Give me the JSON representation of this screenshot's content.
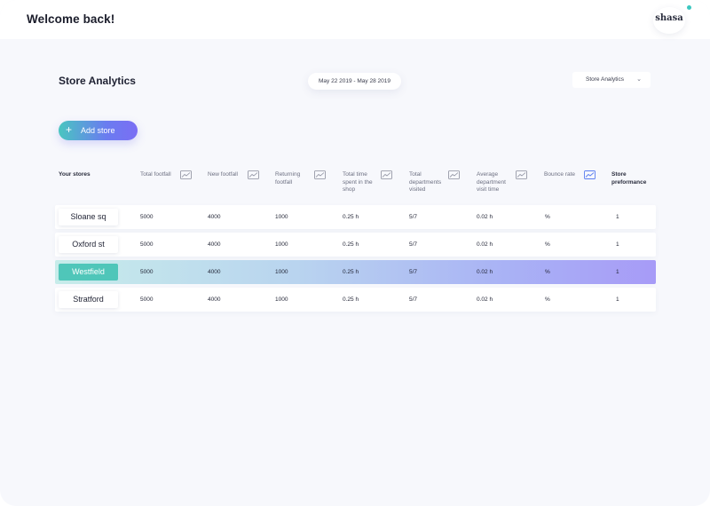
{
  "header": {
    "greeting": "Welcome back!",
    "logo_text": "shasa"
  },
  "page": {
    "title": "Store Analytics",
    "date_range": "May 22 2019 - May 28 2019",
    "view_select": {
      "selected": "Store Analytics",
      "icon": "chevron-down-icon"
    },
    "add_store_label": "Add store",
    "add_store_icon": "plus-icon"
  },
  "table": {
    "columns": [
      {
        "label": "Your stores",
        "bold": true,
        "trend_icon": false
      },
      {
        "label": "Total footfall",
        "trend_icon": true
      },
      {
        "label": "New footfall",
        "trend_icon": true
      },
      {
        "label": "Returning footfall",
        "trend_icon": true
      },
      {
        "label": "Total time spent in the shop",
        "trend_icon": true
      },
      {
        "label": "Total departments visited",
        "trend_icon": true
      },
      {
        "label": "Average department visit time",
        "trend_icon": true
      },
      {
        "label": "Bounce rate",
        "trend_icon": true,
        "trend_active": true
      },
      {
        "label": "Store preformance",
        "bold": true,
        "trend_icon": false
      }
    ],
    "rows": [
      {
        "store": "Sloane sq",
        "total_footfall": "5000",
        "new_footfall": "4000",
        "returning_footfall": "1000",
        "time_spent": "0.25 h",
        "departments": "5/7",
        "avg_visit_time": "0.02 h",
        "bounce_rate": "%",
        "performance": "1",
        "selected": false
      },
      {
        "store": "Oxford st",
        "total_footfall": "5000",
        "new_footfall": "4000",
        "returning_footfall": "1000",
        "time_spent": "0.25 h",
        "departments": "5/7",
        "avg_visit_time": "0.02 h",
        "bounce_rate": "%",
        "performance": "1",
        "selected": false
      },
      {
        "store": "Westfield",
        "total_footfall": "5000",
        "new_footfall": "4000",
        "returning_footfall": "1000",
        "time_spent": "0.25 h",
        "departments": "5/7",
        "avg_visit_time": "0.02 h",
        "bounce_rate": "%",
        "performance": "1",
        "selected": true
      },
      {
        "store": "Stratford",
        "total_footfall": "5000",
        "new_footfall": "4000",
        "returning_footfall": "1000",
        "time_spent": "0.25 h",
        "departments": "5/7",
        "avg_visit_time": "0.02 h",
        "bounce_rate": "%",
        "performance": "1",
        "selected": false
      }
    ]
  },
  "colors": {
    "accent_teal": "#4fc6b9",
    "accent_purple": "#7b6ef4",
    "trend_icon": "#8a8d9c",
    "trend_icon_active": "#5b7ef0"
  }
}
